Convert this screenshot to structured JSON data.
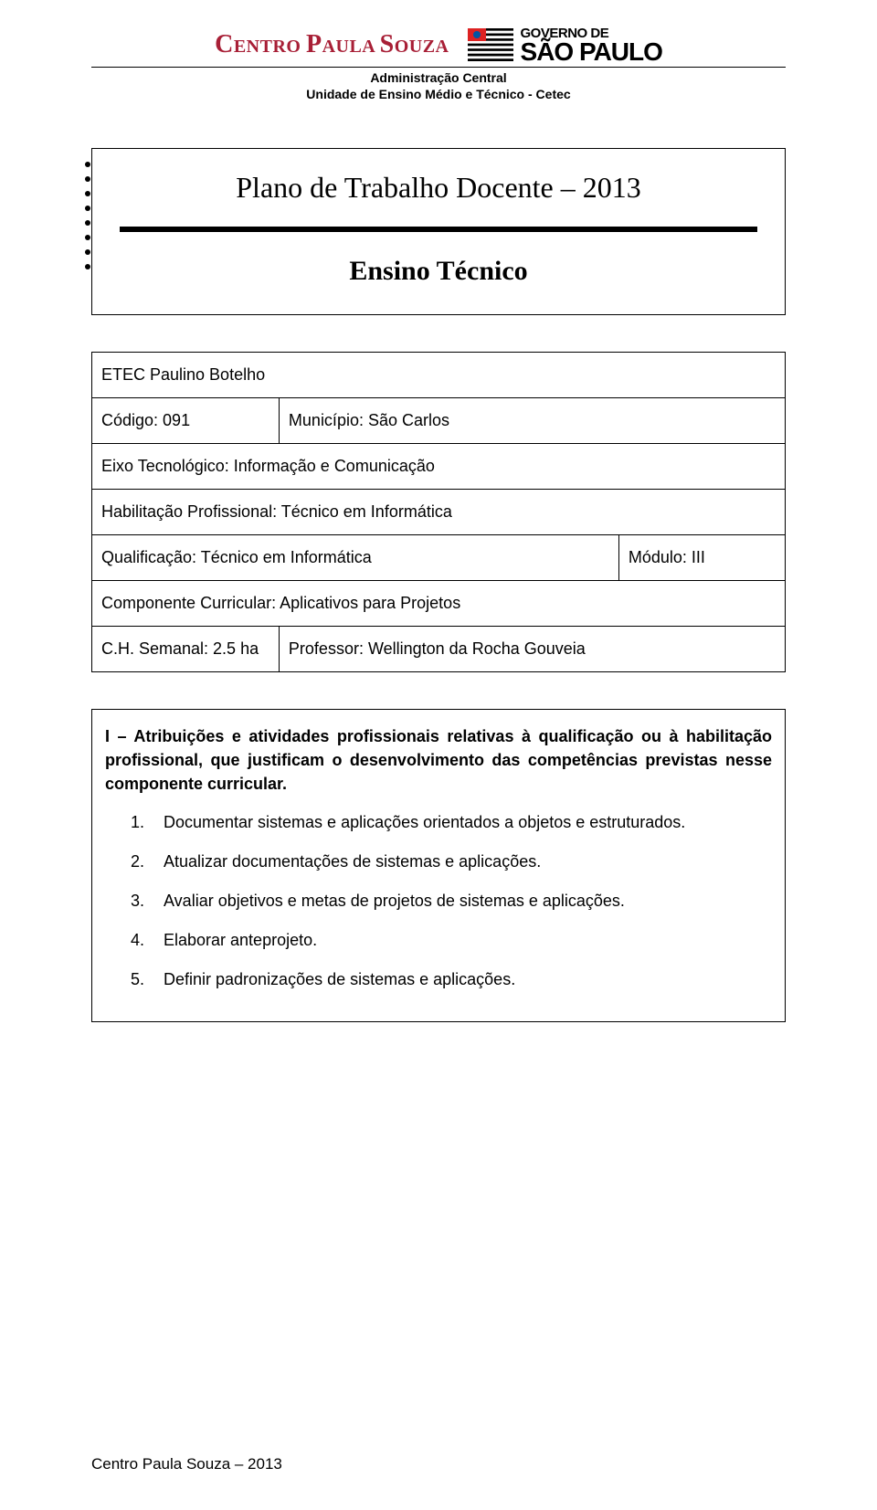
{
  "header": {
    "logo_left": "CENTRO PAULA SOUZA",
    "logo_right_line1": "GOVERNO DE",
    "logo_right_line2": "SÃO PAULO",
    "sub_line1": "Administração Central",
    "sub_line2": "Unidade de Ensino Médio e Técnico - Cetec"
  },
  "title": {
    "main": "Plano de Trabalho Docente – 2013",
    "sub": "Ensino Técnico"
  },
  "info": {
    "etec": "ETEC Paulino Botelho",
    "codigo_label": "Código: 091",
    "municipio": "Município: São Carlos",
    "eixo": "Eixo Tecnológico: Informação e Comunicação",
    "habilitacao": "Habilitação Profissional: Técnico em Informática",
    "qualificacao": "Qualificação: Técnico em Informática",
    "modulo": "Módulo: III",
    "componente": "Componente Curricular: Aplicativos para Projetos",
    "ch": "C.H. Semanal: 2.5 ha",
    "professor": "Professor: Wellington da Rocha Gouveia"
  },
  "section1": {
    "heading": "I – Atribuições e atividades profissionais relativas à qualificação ou à habilitação profissional, que justificam o desenvolvimento das competências previstas nesse componente curricular.",
    "items": [
      "Documentar sistemas e aplicações orientados a objetos e estruturados.",
      "Atualizar documentações de sistemas e aplicações.",
      "Avaliar objetivos e metas de projetos de sistemas e aplicações.",
      "Elaborar anteprojeto.",
      "Definir padronizações de sistemas e aplicações."
    ]
  },
  "footer": "Centro Paula Souza – 2013"
}
